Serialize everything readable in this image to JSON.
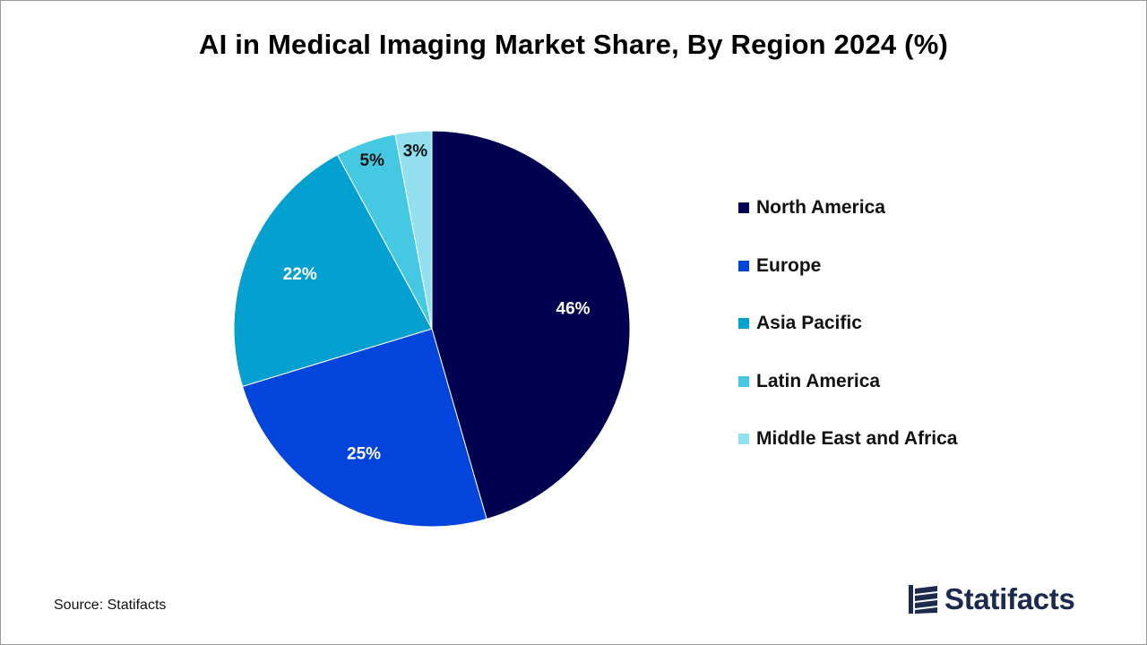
{
  "chart_data": {
    "type": "pie",
    "title": "AI in Medical Imaging Market Share, By Region 2024 (%)",
    "slices": [
      {
        "name": "North America",
        "value": 46,
        "label": "46%",
        "color": "#020050",
        "label_color": "#ffffff"
      },
      {
        "name": "Europe",
        "value": 25,
        "label": "25%",
        "color": "#0344dc",
        "label_color": "#ffffff"
      },
      {
        "name": "Asia Pacific",
        "value": 22,
        "label": "22%",
        "color": "#03a0d0",
        "label_color": "#ffffff"
      },
      {
        "name": "Latin America",
        "value": 5,
        "label": "5%",
        "color": "#45c9e3",
        "label_color": "#111111"
      },
      {
        "name": "Middle East and Africa",
        "value": 3,
        "label": "3%",
        "color": "#92e0ef",
        "label_color": "#111111"
      }
    ],
    "start_angle": "12 o'clock",
    "direction": "clockwise",
    "legend_position": "right"
  },
  "source": "Source: Statifacts",
  "brand": {
    "name": "Statifacts",
    "color": "#1b2a4e",
    "icon": "statifacts-logo-icon"
  }
}
